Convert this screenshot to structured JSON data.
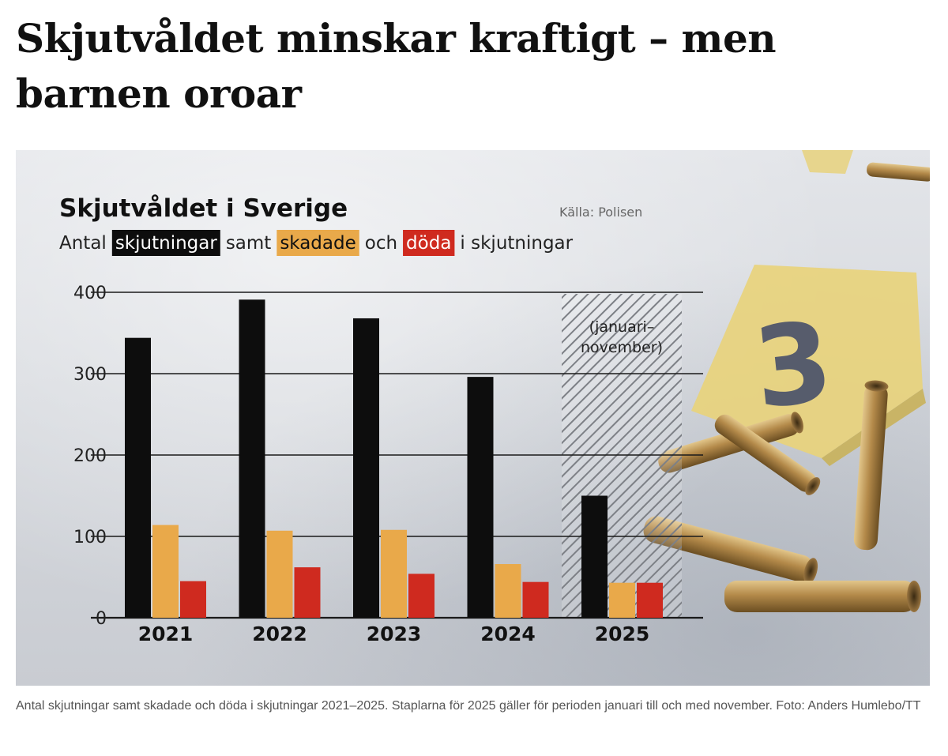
{
  "headline": "Skjutvåldet minskar kraftigt – men barnen oroar",
  "chart_data": {
    "type": "bar",
    "title": "Skjutvåldet i Sverige",
    "source": "Källa: Polisen",
    "subtitle": {
      "prefix": "Antal",
      "s1": "skjutningar",
      "mid1": "samt",
      "s2": "skadade",
      "mid2": "och",
      "s3": "döda",
      "suffix": "i skjutningar"
    },
    "categories": [
      "2021",
      "2022",
      "2023",
      "2024",
      "2025"
    ],
    "series": [
      {
        "name": "skjutningar",
        "color": "#0d0d0d",
        "values": [
          344,
          391,
          368,
          296,
          150
        ]
      },
      {
        "name": "skadade",
        "color": "#e9a94a",
        "values": [
          114,
          107,
          108,
          66,
          43
        ]
      },
      {
        "name": "döda",
        "color": "#cf2a1f",
        "values": [
          45,
          62,
          54,
          44,
          43
        ]
      }
    ],
    "ylim": [
      0,
      400
    ],
    "yticks": [
      0,
      100,
      200,
      300,
      400
    ],
    "grid": true,
    "partial_period": {
      "category": "2025",
      "label_line1": "(januari–",
      "label_line2": "november)"
    }
  },
  "caption": "Antal skjutningar samt skadade och döda i skjutningar 2021–2025. Staplarna för 2025 gäller för perioden januari till och med november. Foto: Anders Humlebo/TT"
}
